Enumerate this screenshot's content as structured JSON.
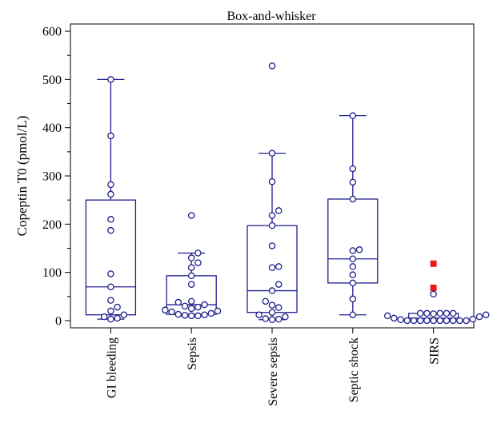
{
  "chart_data": {
    "type": "box",
    "title": "Box-and-whisker",
    "xlabel": "",
    "ylabel": "Copeptin T0 (pmol/L)",
    "ylim": [
      -15,
      615
    ],
    "yticks": [
      0,
      100,
      200,
      300,
      400,
      500,
      600
    ],
    "grid": false,
    "legend": "none",
    "colors": {
      "box": "#1f1f8f",
      "point": "#1f1f8f",
      "outlier": "#e8191f",
      "axis": "#000000"
    },
    "categories": [
      "GI bleeding",
      "Sepsis",
      "Severe sepsis",
      "Septic shock",
      "SIRS"
    ],
    "boxes": [
      {
        "category": "GI bleeding",
        "whisker_low": 3,
        "q1": 12,
        "median": 70,
        "q3": 250,
        "whisker_high": 500,
        "points": [
          3,
          5,
          8,
          12,
          20,
          28,
          42,
          70,
          97,
          187,
          210,
          262,
          282,
          383,
          500
        ],
        "outliers": []
      },
      {
        "category": "Sepsis",
        "whisker_low": 10,
        "q1": 13,
        "median": 33,
        "q3": 93,
        "whisker_high": 140,
        "points": [
          10,
          10,
          11,
          12,
          13,
          15,
          18,
          20,
          22,
          25,
          28,
          30,
          33,
          38,
          40,
          75,
          93,
          110,
          120,
          130,
          140,
          218
        ],
        "outliers": []
      },
      {
        "category": "Severe sepsis",
        "whisker_low": 2,
        "q1": 17,
        "median": 62,
        "q3": 197,
        "whisker_high": 347,
        "points": [
          2,
          3,
          4,
          8,
          12,
          17,
          27,
          32,
          40,
          62,
          75,
          110,
          112,
          155,
          197,
          218,
          228,
          288,
          347,
          528
        ],
        "outliers": []
      },
      {
        "category": "Septic shock",
        "whisker_low": 12,
        "q1": 78,
        "median": 128,
        "q3": 252,
        "whisker_high": 425,
        "points": [
          12,
          45,
          78,
          95,
          112,
          128,
          145,
          147,
          252,
          287,
          315,
          425
        ],
        "outliers": []
      },
      {
        "category": "SIRS",
        "whisker_low": 0,
        "q1": 0,
        "median": 5,
        "q3": 15,
        "whisker_high": 15,
        "points": [
          0,
          0,
          0,
          0,
          0,
          0,
          0,
          0,
          0,
          0,
          2,
          3,
          5,
          8,
          10,
          12,
          14,
          15,
          15,
          15,
          15,
          15,
          55
        ],
        "outliers": [
          68,
          118
        ]
      }
    ]
  }
}
